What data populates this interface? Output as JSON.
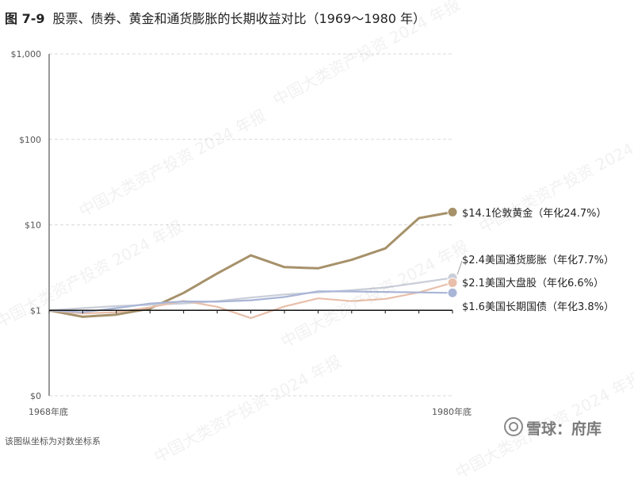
{
  "figure": {
    "number": "图 7-9",
    "title": "股票、债券、黄金和通货膨胀的长期收益对比（1969～1980 年）",
    "footnote": "该图纵坐标为对数坐标系",
    "watermark": "中国大类资产投资 2024 年报",
    "brand": "雪球：府库"
  },
  "chart_data": {
    "type": "line",
    "title": "股票、债券、黄金和通货膨胀的长期收益对比（1969～1980 年）",
    "xlabel": "",
    "ylabel": "",
    "x": [
      1968,
      1969,
      1970,
      1971,
      1972,
      1973,
      1974,
      1975,
      1976,
      1977,
      1978,
      1979,
      1980
    ],
    "x_tick_labels": [
      "1968年底",
      "1980年底"
    ],
    "y_scale": "log",
    "y_ticks": [
      0.1,
      1,
      10,
      100,
      1000
    ],
    "y_tick_labels": [
      "$0",
      "$1",
      "$10",
      "$100",
      "$1,000"
    ],
    "ylim": [
      0.1,
      1000
    ],
    "grid": true,
    "series": [
      {
        "name": "$14.1伦敦黄金（年化24.7%）",
        "color": "#a6916a",
        "values": [
          1.0,
          0.84,
          0.89,
          1.05,
          1.6,
          2.7,
          4.4,
          3.2,
          3.1,
          3.9,
          5.3,
          12.0,
          14.1
        ]
      },
      {
        "name": "$2.4美国通货膨胀（年化7.7%）",
        "color": "#c9ced8",
        "values": [
          1.0,
          1.06,
          1.12,
          1.16,
          1.2,
          1.28,
          1.41,
          1.53,
          1.62,
          1.72,
          1.85,
          2.1,
          2.4
        ]
      },
      {
        "name": "$2.1美国大盘股（年化6.6%）",
        "color": "#e8bfaa",
        "values": [
          1.0,
          0.92,
          0.95,
          1.08,
          1.29,
          1.1,
          0.81,
          1.11,
          1.38,
          1.28,
          1.36,
          1.62,
          2.1
        ]
      },
      {
        "name": "$1.6美国长期国债（年化3.8%）",
        "color": "#a9b5d6",
        "values": [
          1.0,
          0.95,
          1.06,
          1.2,
          1.27,
          1.26,
          1.31,
          1.43,
          1.67,
          1.66,
          1.64,
          1.62,
          1.6
        ]
      }
    ]
  }
}
